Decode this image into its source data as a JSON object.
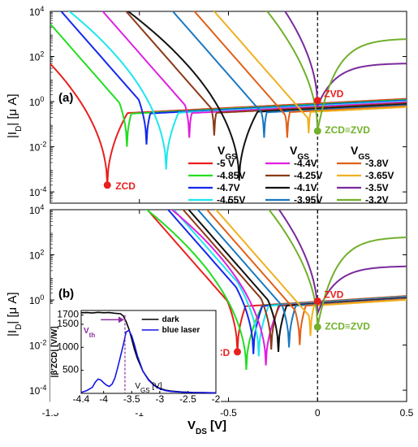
{
  "chart_data": [
    {
      "panel": "a",
      "type": "line",
      "log_y": true,
      "xlim": [
        -1.5,
        0.5
      ],
      "ylim_log10": [
        -4.5,
        4
      ],
      "xlabel": "",
      "ylabel": {
        "main": "|I",
        "sub": "D",
        "rest": "| [μ A]"
      },
      "ytick_labels": [
        {
          "b": "10",
          "e": "4",
          "v": 4
        },
        {
          "b": "10",
          "e": "2",
          "v": 2
        },
        {
          "b": "10",
          "e": "0",
          "v": 0
        },
        {
          "b": "10",
          "e": "-2",
          "v": -2
        },
        {
          "b": "10",
          "e": "-4",
          "v": -4
        }
      ],
      "series": [
        {
          "name": "-5 V",
          "color": "#e8201e",
          "vzero": -1.18,
          "dip": -3.7,
          "vs": -0.6,
          "a": 3.2
        },
        {
          "name": "-4.85V",
          "color": "#22dd22",
          "vzero": -1.07,
          "dip": -2.0,
          "vs": -0.5,
          "a": 3.5
        },
        {
          "name": "-4.7V",
          "color": "#1428ee",
          "vzero": -0.96,
          "dip": -1.9,
          "vs": -0.4,
          "a": 3.8
        },
        {
          "name": "-4.55V",
          "color": "#1ee6ee",
          "vzero": -0.85,
          "dip": -3.0,
          "vs": -0.3,
          "a": 4.0
        },
        {
          "name": "-4.4V",
          "color": "#e01ee0",
          "vzero": -0.72,
          "dip": -1.6,
          "vs": -0.15,
          "a": 4.1
        },
        {
          "name": "-4.25V",
          "color": "#8c3a18",
          "vzero": -0.58,
          "dip": -1.5,
          "vs": 0.0,
          "a": 4.2
        },
        {
          "name": "-4.1V",
          "color": "#111111",
          "vzero": -0.44,
          "dip": -3.5,
          "vs": 0.15,
          "a": 4.3
        },
        {
          "name": "-3.95V",
          "color": "#1a78c2",
          "vzero": -0.3,
          "dip": -1.6,
          "vs": 0.3,
          "a": 4.4
        },
        {
          "name": "-3.8V",
          "color": "#e06018",
          "vzero": -0.17,
          "dip": -1.6,
          "vs": 0.45,
          "a": 4.5
        },
        {
          "name": "-3.65V",
          "color": "#f0b020",
          "vzero": -0.05,
          "dip": -1.4,
          "vs": 0.6,
          "a": 4.6
        },
        {
          "name": "-3.5V",
          "color": "#7a2a9c",
          "vzero": 0.0,
          "dip": -0.2,
          "vs": 0.0,
          "a": 4.6,
          "plateau": 1.7
        },
        {
          "name": "-3.2V",
          "color": "#72b02c",
          "vzero": 0.0,
          "dip": -1.3,
          "vs": 0.0,
          "a": 4.7,
          "plateau": 2.8
        }
      ],
      "legend": {
        "headers": [
          "V",
          "V",
          "V"
        ],
        "header_sub": "GS"
      },
      "annotations": {
        "panel_label": "(a)",
        "zcd": "ZCD",
        "zvd": "ZVD",
        "zcd_zvd": "ZCD≡ZVD"
      },
      "markers": {
        "zcd": {
          "x": -1.18,
          "y": -3.7
        },
        "zvd": {
          "x": 0.0,
          "y": 0.05
        },
        "zcd_zvd": {
          "x": 0.0,
          "y": -1.3
        }
      },
      "vline_x": 0
    },
    {
      "panel": "b",
      "type": "line",
      "log_y": true,
      "xlim": [
        -1.5,
        0.5
      ],
      "ylim_log10": [
        -4.5,
        4
      ],
      "xlabel": {
        "main": "V",
        "sub": "DS",
        "rest": " [V]"
      },
      "xtick_labels": [
        "-1.5",
        "-1",
        "-0.5",
        "0",
        "0.5"
      ],
      "ylabel": {
        "main": "|I",
        "sub": "D",
        "rest": "| [μ A]"
      },
      "ytick_labels": [
        {
          "b": "10",
          "e": "4",
          "v": 4
        },
        {
          "b": "10",
          "e": "2",
          "v": 2
        },
        {
          "b": "10",
          "e": "0",
          "v": 0
        },
        {
          "b": "10",
          "e": "-2",
          "v": -2
        },
        {
          "b": "10",
          "e": "-4",
          "v": -4
        }
      ],
      "series": [
        {
          "name": "-5 V",
          "color": "#e8201e",
          "vzero": -0.45,
          "dip": -2.3,
          "vs": -0.6,
          "a": 3.2
        },
        {
          "name": "-4.85V",
          "color": "#22dd22",
          "vzero": -0.4,
          "dip": -3.1,
          "vs": -0.5,
          "a": 3.5
        },
        {
          "name": "-4.7V",
          "color": "#1428ee",
          "vzero": -0.36,
          "dip": -2.4,
          "vs": -0.4,
          "a": 3.8
        },
        {
          "name": "-4.55V",
          "color": "#1ee6ee",
          "vzero": -0.33,
          "dip": -2.5,
          "vs": -0.3,
          "a": 4.0
        },
        {
          "name": "-4.4V",
          "color": "#e01ee0",
          "vzero": -0.29,
          "dip": -2.9,
          "vs": -0.15,
          "a": 4.1
        },
        {
          "name": "-4.25V",
          "color": "#8c3a18",
          "vzero": -0.26,
          "dip": -2.2,
          "vs": 0.0,
          "a": 4.2
        },
        {
          "name": "-4.1V",
          "color": "#111111",
          "vzero": -0.22,
          "dip": -2.3,
          "vs": 0.15,
          "a": 4.3
        },
        {
          "name": "-3.95V",
          "color": "#1a78c2",
          "vzero": -0.16,
          "dip": -2.1,
          "vs": 0.3,
          "a": 4.4
        },
        {
          "name": "-3.8V",
          "color": "#e06018",
          "vzero": -0.1,
          "dip": -2.0,
          "vs": 0.45,
          "a": 4.5
        },
        {
          "name": "-3.65V",
          "color": "#f0b020",
          "vzero": -0.04,
          "dip": -1.6,
          "vs": 0.6,
          "a": 4.6
        },
        {
          "name": "-3.5V",
          "color": "#7a2a9c",
          "vzero": 0.0,
          "dip": -0.6,
          "vs": 0.0,
          "a": 4.6,
          "plateau": 1.5
        },
        {
          "name": "-3.2V",
          "color": "#72b02c",
          "vzero": 0.0,
          "dip": -1.2,
          "vs": 0.0,
          "a": 4.7,
          "plateau": 2.8
        }
      ],
      "annotations": {
        "panel_label": "(b)",
        "zcd": "ZCD",
        "zvd": "ZVD",
        "zcd_zvd": "ZCD≡ZVD"
      },
      "markers": {
        "zcd": {
          "x": -0.45,
          "y": -2.3
        },
        "zvd": {
          "x": 0.0,
          "y": -0.05
        },
        "zcd_zvd": {
          "x": 0.0,
          "y": -1.2
        }
      },
      "vline_x": 0
    },
    {
      "panel": "b-inset",
      "type": "line",
      "xlim": [
        -4.4,
        -2.0
      ],
      "ylim": [
        0,
        1800
      ],
      "xtick_labels": [
        "-4.4",
        "-4",
        "-3.5",
        "-3",
        "-2.5",
        "-2"
      ],
      "ytick_labels": [
        "1700",
        "1500",
        "1000",
        "500"
      ],
      "ylabel": "|β′ZCD| [V/W]",
      "xlabel": {
        "main": "V",
        "sub": "GS",
        "rest": " [V]"
      },
      "vth_label": {
        "main": "V",
        "sub": "th"
      },
      "vth_x": -3.62,
      "series": [
        {
          "name": "dark",
          "color": "#000000",
          "x": [
            -4.4,
            -4.3,
            -4.2,
            -4.1,
            -4.0,
            -3.9,
            -3.8,
            -3.7,
            -3.65,
            -3.6,
            -3.55,
            -3.5,
            -3.45,
            -3.4,
            -3.3,
            -3.2,
            -3.1,
            -3.0,
            -2.9,
            -2.8,
            -2.6,
            -2.4,
            -2.2,
            -2.0
          ],
          "y": [
            1750,
            1755,
            1745,
            1760,
            1750,
            1755,
            1740,
            1730,
            1680,
            1560,
            1400,
            1180,
            950,
            760,
            480,
            300,
            180,
            110,
            70,
            50,
            30,
            20,
            15,
            12
          ]
        },
        {
          "name": "blue laser",
          "color": "#1414e6",
          "x": [
            -4.4,
            -4.3,
            -4.2,
            -4.15,
            -4.1,
            -4.05,
            -4.0,
            -3.95,
            -3.9,
            -3.85,
            -3.8,
            -3.75,
            -3.7,
            -3.65,
            -3.6,
            -3.55,
            -3.5,
            -3.45,
            -3.4,
            -3.3,
            -3.2,
            -3.1,
            -3.0,
            -2.9,
            -2.8,
            -2.6,
            -2.4,
            -2.2,
            -2.0
          ],
          "y": [
            20,
            60,
            130,
            240,
            310,
            290,
            230,
            180,
            150,
            200,
            330,
            560,
            800,
            1050,
            1330,
            1370,
            1250,
            1050,
            820,
            480,
            290,
            170,
            100,
            60,
            40,
            25,
            18,
            14,
            10
          ]
        }
      ]
    }
  ]
}
